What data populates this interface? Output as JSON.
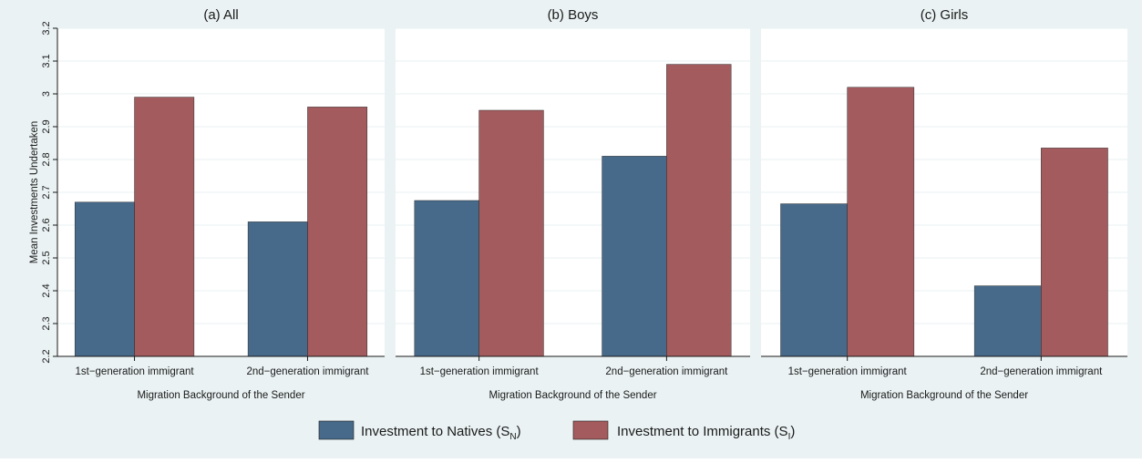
{
  "colors": {
    "natives": "#476a8a",
    "immigrants": "#a45b5e",
    "outer_bg": "#eaf2f3",
    "plot_bg": "#ffffff",
    "grid": "#eaf2f3"
  },
  "legend": {
    "natives_label": "Investment to Natives (S",
    "natives_sub": "N",
    "immigrants_label": "Investment to Immigrants (S",
    "immigrants_sub": "I",
    "closing_paren": ")"
  },
  "chart_data": [
    {
      "type": "bar",
      "title": "(a) All",
      "categories": [
        "1st−generation immigrant",
        "2nd−generation immigrant"
      ],
      "series": [
        {
          "name": "Investment to Natives (SN)",
          "values": [
            2.67,
            2.61
          ]
        },
        {
          "name": "Investment to Immigrants (SI)",
          "values": [
            2.99,
            2.96
          ]
        }
      ],
      "xlabel": "Migration Background of the Sender",
      "ylabel": "Mean Investments Undertaken",
      "ylim": [
        2.2,
        3.2
      ],
      "yticks": [
        "2.2",
        "2.3",
        "2.4",
        "2.5",
        "2.6",
        "2.7",
        "2.8",
        "2.9",
        "3",
        "3.1",
        "3.2"
      ],
      "grid": true,
      "legend_position": "bottom"
    },
    {
      "type": "bar",
      "title": "(b) Boys",
      "categories": [
        "1st−generation immigrant",
        "2nd−generation immigrant"
      ],
      "series": [
        {
          "name": "Investment to Natives (SN)",
          "values": [
            2.675,
            2.81
          ]
        },
        {
          "name": "Investment to Immigrants (SI)",
          "values": [
            2.95,
            3.09
          ]
        }
      ],
      "xlabel": "Migration Background of the Sender",
      "ylabel": "",
      "ylim": [
        2.2,
        3.2
      ],
      "grid": true
    },
    {
      "type": "bar",
      "title": "(c) Girls",
      "categories": [
        "1st−generation immigrant",
        "2nd−generation immigrant"
      ],
      "series": [
        {
          "name": "Investment to Natives (SN)",
          "values": [
            2.665,
            2.415
          ]
        },
        {
          "name": "Investment to Immigrants (SI)",
          "values": [
            3.02,
            2.835
          ]
        }
      ],
      "xlabel": "Migration Background of the Sender",
      "ylabel": "",
      "ylim": [
        2.2,
        3.2
      ],
      "grid": true
    }
  ]
}
